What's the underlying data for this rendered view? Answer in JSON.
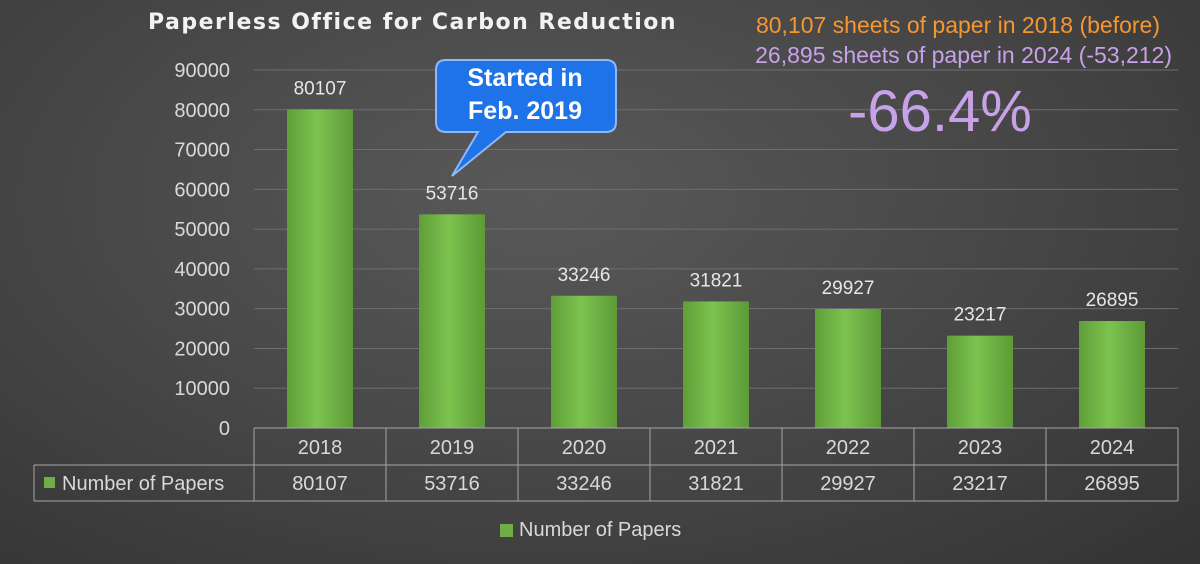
{
  "chart_data": {
    "type": "bar",
    "title": "Paperless Office for Carbon Reduction",
    "categories": [
      "2018",
      "2019",
      "2020",
      "2021",
      "2022",
      "2023",
      "2024"
    ],
    "series": [
      {
        "name": "Number of Papers",
        "values": [
          80107,
          53716,
          33246,
          31821,
          29927,
          23217,
          26895
        ]
      }
    ],
    "ylim": [
      0,
      90000
    ],
    "yticks": [
      "0",
      "10000",
      "20000",
      "30000",
      "40000",
      "50000",
      "60000",
      "70000",
      "80000",
      "90000"
    ],
    "data_labels": [
      "80107",
      "53716",
      "33246",
      "31821",
      "29927",
      "23217",
      "26895"
    ],
    "table_values": [
      "80107",
      "53716",
      "33246",
      "31821",
      "29927",
      "23217",
      "26895"
    ],
    "grid": true,
    "legend": "bottom",
    "bar_color": "#70ad47"
  },
  "annotations": {
    "note_before": "80,107 sheets of paper in 2018 (before)",
    "note_after": "26,895 sheets of paper in 2024 (-53,212)",
    "reduction": "-66.4%",
    "callout_line1": "Started in",
    "callout_line2": "Feb. 2019",
    "note_before_color": "#f7962e",
    "note_after_color": "#c8a2e8"
  }
}
